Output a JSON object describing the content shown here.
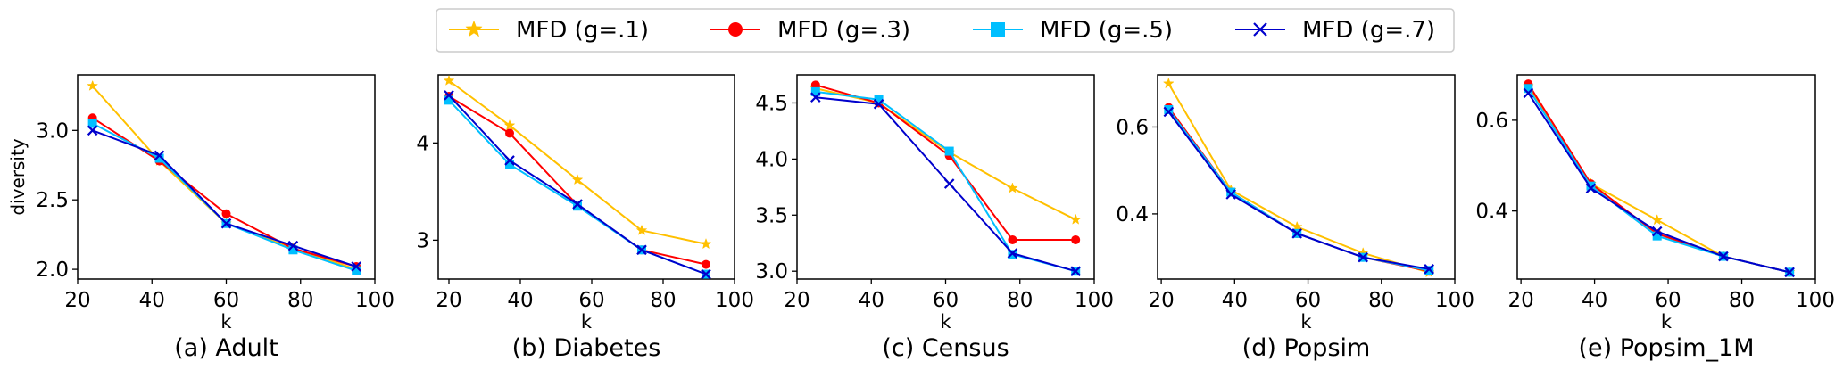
{
  "legend": {
    "placement": "top-center",
    "entries": [
      {
        "label": "MFD (g=.1)",
        "color": "#FFC000",
        "marker": "star"
      },
      {
        "label": "MFD (g=.3)",
        "color": "#FF0000",
        "marker": "circle"
      },
      {
        "label": "MFD (g=.5)",
        "color": "#00BFFF",
        "marker": "square"
      },
      {
        "label": "MFD (g=.7)",
        "color": "#0000CC",
        "marker": "x"
      }
    ]
  },
  "chart_data": [
    {
      "type": "line",
      "title": "(a) Adult",
      "xlabel": "k",
      "ylabel": "diversity",
      "xlim": [
        20,
        100
      ],
      "ylim": [
        1.93,
        3.4
      ],
      "xticks": [
        20,
        40,
        60,
        80,
        100
      ],
      "yticks": [
        2.0,
        2.5,
        3.0
      ],
      "ytick_labels": [
        "2.0",
        "2.5",
        "3.0"
      ],
      "x": [
        24,
        42,
        60,
        78,
        95
      ],
      "series": [
        {
          "name": "MFD (g=.1)",
          "values": [
            3.32,
            2.78,
            2.33,
            2.15,
            2.0
          ]
        },
        {
          "name": "MFD (g=.3)",
          "values": [
            3.09,
            2.78,
            2.4,
            2.15,
            2.02
          ]
        },
        {
          "name": "MFD (g=.5)",
          "values": [
            3.05,
            2.8,
            2.33,
            2.14,
            1.99
          ]
        },
        {
          "name": "MFD (g=.7)",
          "values": [
            3.0,
            2.82,
            2.33,
            2.17,
            2.02
          ]
        }
      ]
    },
    {
      "type": "line",
      "title": "(b) Diabetes",
      "xlabel": "k",
      "ylabel": "",
      "xlim": [
        17,
        100
      ],
      "ylim": [
        2.6,
        4.7
      ],
      "xticks": [
        20,
        40,
        60,
        80,
        100
      ],
      "yticks": [
        3,
        4
      ],
      "ytick_labels": [
        "3",
        "4"
      ],
      "x": [
        20,
        37,
        56,
        74,
        92
      ],
      "series": [
        {
          "name": "MFD (g=.1)",
          "values": [
            4.64,
            4.18,
            3.62,
            3.1,
            2.96
          ]
        },
        {
          "name": "MFD (g=.3)",
          "values": [
            4.48,
            4.1,
            3.36,
            2.9,
            2.75
          ]
        },
        {
          "name": "MFD (g=.5)",
          "values": [
            4.44,
            3.78,
            3.35,
            2.9,
            2.65
          ]
        },
        {
          "name": "MFD (g=.7)",
          "values": [
            4.49,
            3.82,
            3.37,
            2.9,
            2.65
          ]
        }
      ]
    },
    {
      "type": "line",
      "title": "(c) Census",
      "xlabel": "k",
      "ylabel": "",
      "xlim": [
        20,
        100
      ],
      "ylim": [
        2.93,
        4.75
      ],
      "xticks": [
        20,
        40,
        60,
        80,
        100
      ],
      "yticks": [
        3.0,
        3.5,
        4.0,
        4.5
      ],
      "ytick_labels": [
        "3.0",
        "3.5",
        "4.0",
        "4.5"
      ],
      "x": [
        25,
        42,
        61,
        78,
        95
      ],
      "series": [
        {
          "name": "MFD (g=.1)",
          "values": [
            4.63,
            4.5,
            4.06,
            3.74,
            3.46
          ]
        },
        {
          "name": "MFD (g=.3)",
          "values": [
            4.66,
            4.5,
            4.03,
            3.28,
            3.28
          ]
        },
        {
          "name": "MFD (g=.5)",
          "values": [
            4.6,
            4.53,
            4.07,
            3.15,
            3.0
          ]
        },
        {
          "name": "MFD (g=.7)",
          "values": [
            4.55,
            4.49,
            3.78,
            3.16,
            3.0
          ]
        }
      ]
    },
    {
      "type": "line",
      "title": "(d) Popsim",
      "xlabel": "k",
      "ylabel": "",
      "xlim": [
        19,
        100
      ],
      "ylim": [
        0.25,
        0.72
      ],
      "xticks": [
        20,
        40,
        60,
        80,
        100
      ],
      "yticks": [
        0.4,
        0.6
      ],
      "ytick_labels": [
        "0.4",
        "0.6"
      ],
      "x": [
        22,
        39,
        57,
        75,
        93
      ],
      "series": [
        {
          "name": "MFD (g=.1)",
          "values": [
            0.7,
            0.455,
            0.37,
            0.31,
            0.265
          ]
        },
        {
          "name": "MFD (g=.3)",
          "values": [
            0.645,
            0.45,
            0.355,
            0.3,
            0.268
          ]
        },
        {
          "name": "MFD (g=.5)",
          "values": [
            0.64,
            0.45,
            0.355,
            0.3,
            0.27
          ]
        },
        {
          "name": "MFD (g=.7)",
          "values": [
            0.635,
            0.445,
            0.355,
            0.3,
            0.273
          ]
        }
      ]
    },
    {
      "type": "line",
      "title": "(e) Popsim_1M",
      "xlabel": "k",
      "ylabel": "",
      "xlim": [
        19,
        100
      ],
      "ylim": [
        0.25,
        0.7
      ],
      "xticks": [
        20,
        40,
        60,
        80,
        100
      ],
      "yticks": [
        0.4,
        0.6
      ],
      "ytick_labels": [
        "0.4",
        "0.6"
      ],
      "x": [
        22,
        39,
        57,
        75,
        93
      ],
      "series": [
        {
          "name": "MFD (g=.1)",
          "values": [
            0.675,
            0.46,
            0.38,
            0.3,
            0.265
          ]
        },
        {
          "name": "MFD (g=.3)",
          "values": [
            0.68,
            0.46,
            0.35,
            0.3,
            0.265
          ]
        },
        {
          "name": "MFD (g=.5)",
          "values": [
            0.67,
            0.455,
            0.345,
            0.3,
            0.265
          ]
        },
        {
          "name": "MFD (g=.7)",
          "values": [
            0.66,
            0.45,
            0.355,
            0.3,
            0.265
          ]
        }
      ]
    }
  ]
}
